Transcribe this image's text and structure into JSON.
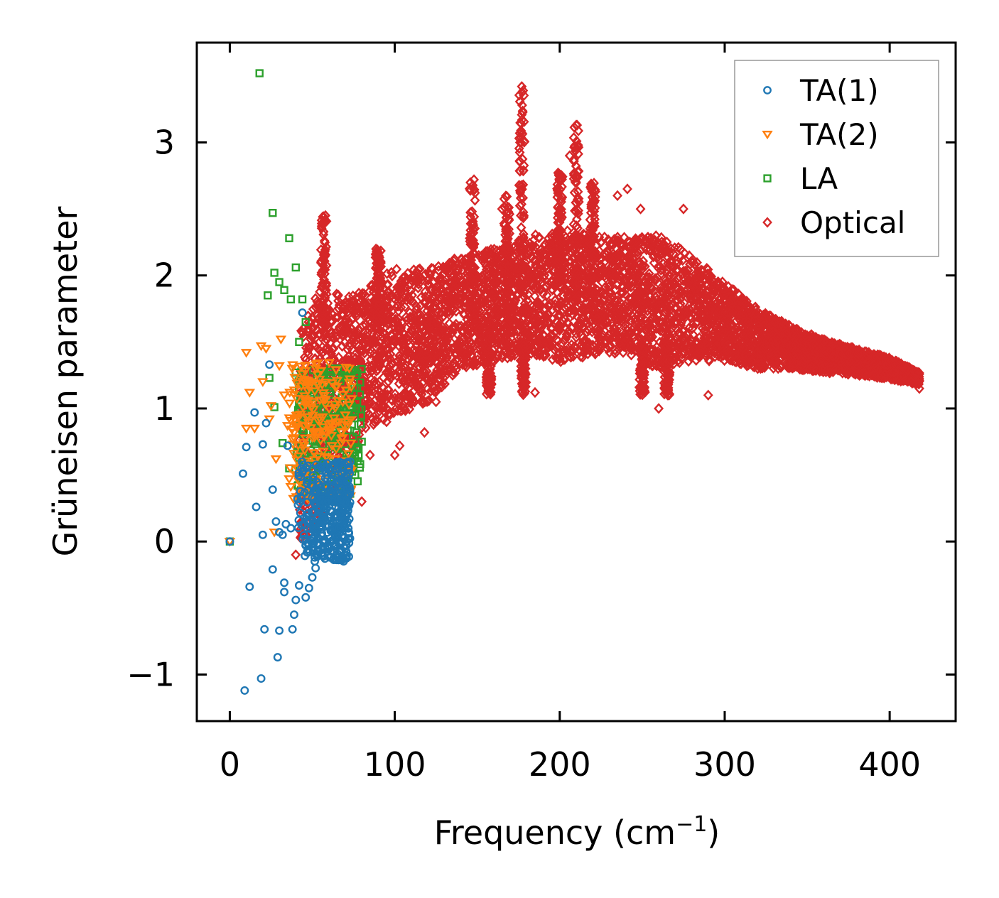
{
  "chart_data": {
    "type": "scatter",
    "title": "",
    "xlabel": "Frequency (cm",
    "xlabel_sup": "−1",
    "xlabel_close": ")",
    "ylabel": "Grüneisen parameter",
    "xlim": [
      -20,
      440
    ],
    "ylim": [
      -1.35,
      3.75
    ],
    "xticks": [
      0,
      100,
      200,
      300,
      400
    ],
    "xtick_labels": [
      "0",
      "100",
      "200",
      "300",
      "400"
    ],
    "yticks": [
      -1,
      0,
      1,
      2,
      3
    ],
    "ytick_labels": [
      "−1",
      "0",
      "1",
      "2",
      "3"
    ],
    "grid": false,
    "legend_position": "top-right",
    "series": [
      {
        "name": "TA(1)",
        "marker": "circle",
        "color": "#1f77b4",
        "points": [
          [
            0,
            0
          ],
          [
            9,
            -1.12
          ],
          [
            10,
            0.71
          ],
          [
            8,
            0.51
          ],
          [
            12,
            -0.34
          ],
          [
            15,
            0.97
          ],
          [
            16,
            0.26
          ],
          [
            19,
            -1.03
          ],
          [
            20,
            0.05
          ],
          [
            20,
            0.73
          ],
          [
            21,
            -0.66
          ],
          [
            22,
            0.89
          ],
          [
            24,
            1.33
          ],
          [
            26,
            0.39
          ],
          [
            26,
            -0.21
          ],
          [
            28,
            0.15
          ],
          [
            29,
            -0.87
          ],
          [
            30,
            0.07
          ],
          [
            30,
            -0.67
          ],
          [
            32,
            0.05
          ],
          [
            33,
            -0.31
          ],
          [
            33,
            -0.38
          ],
          [
            34,
            0.13
          ],
          [
            35,
            0.72
          ],
          [
            37,
            0.1
          ],
          [
            38,
            -0.66
          ],
          [
            39,
            -0.55
          ],
          [
            40,
            -0.44
          ],
          [
            41,
            0.32
          ],
          [
            42,
            -0.33
          ],
          [
            44,
            1.72
          ],
          [
            44,
            0.52
          ],
          [
            46,
            -0.42
          ],
          [
            47,
            0.1
          ],
          [
            48,
            -0.35
          ],
          [
            50,
            -0.27
          ],
          [
            52,
            -0.2
          ],
          [
            54,
            0.02
          ],
          [
            55,
            0.12
          ],
          [
            57,
            0.2
          ],
          [
            60,
            -0.05
          ],
          [
            62,
            0.3
          ],
          [
            64,
            0.4
          ],
          [
            66,
            0.1
          ],
          [
            68,
            0.2
          ],
          [
            69,
            -0.12
          ],
          [
            70,
            0.35
          ],
          [
            71,
            0.45
          ],
          [
            72,
            0.55
          ],
          [
            73,
            0.6
          ]
        ],
        "cluster": {
          "x0": 40,
          "x1": 73,
          "y0": -0.15,
          "y1": 0.6,
          "n": 360,
          "skew": 1.6
        }
      },
      {
        "name": "TA(2)",
        "marker": "triangle-down",
        "color": "#ff7f0e",
        "points": [
          [
            0,
            0
          ],
          [
            10,
            1.42
          ],
          [
            10,
            0.85
          ],
          [
            12,
            1.12
          ],
          [
            15,
            0.85
          ],
          [
            19,
            1.47
          ],
          [
            20,
            1.2
          ],
          [
            22,
            1.45
          ],
          [
            24,
            0.92
          ],
          [
            25,
            1.02
          ],
          [
            27,
            0.07
          ],
          [
            28,
            0.62
          ],
          [
            30,
            1.32
          ],
          [
            31,
            1.52
          ],
          [
            33,
            1.1
          ],
          [
            35,
            0.87
          ],
          [
            36,
            0.47
          ],
          [
            38,
            0.77
          ],
          [
            40,
            0.5
          ],
          [
            42,
            0.45
          ],
          [
            44,
            1.26
          ],
          [
            46,
            1.05
          ],
          [
            48,
            1.16
          ],
          [
            50,
            0.78
          ],
          [
            53,
            1.34
          ],
          [
            56,
            1.18
          ],
          [
            58,
            1.03
          ],
          [
            60,
            0.88
          ],
          [
            62,
            0.72
          ],
          [
            64,
            0.62
          ],
          [
            66,
            0.52
          ],
          [
            68,
            0.82
          ],
          [
            70,
            0.95
          ],
          [
            72,
            0.66
          ]
        ],
        "cluster": {
          "x0": 36,
          "x1": 74,
          "y0": 0.3,
          "y1": 1.35,
          "n": 200,
          "skew": 1.0
        }
      },
      {
        "name": "LA",
        "marker": "square",
        "color": "#2ca02c",
        "points": [
          [
            0,
            0
          ],
          [
            18,
            3.52
          ],
          [
            26,
            2.47
          ],
          [
            27,
            2.02
          ],
          [
            30,
            1.95
          ],
          [
            33,
            1.89
          ],
          [
            36,
            2.28
          ],
          [
            37,
            1.82
          ],
          [
            40,
            2.06
          ],
          [
            23,
            1.85
          ],
          [
            24,
            1.23
          ],
          [
            27,
            1.01
          ],
          [
            32,
            0.74
          ],
          [
            36,
            0.55
          ],
          [
            40,
            1.27
          ],
          [
            42,
            1.5
          ],
          [
            44,
            1.82
          ],
          [
            46,
            1.65
          ],
          [
            48,
            0.38
          ],
          [
            50,
            1.15
          ],
          [
            52,
            0.95
          ],
          [
            55,
            1.26
          ],
          [
            58,
            1.05
          ],
          [
            60,
            0.89
          ],
          [
            62,
            0.72
          ],
          [
            65,
            1.3
          ],
          [
            68,
            0.84
          ],
          [
            70,
            0.6
          ],
          [
            72,
            0.65
          ],
          [
            74,
            0.88
          ],
          [
            76,
            0.5
          ],
          [
            78,
            0.7
          ],
          [
            80,
            0.75
          ]
        ],
        "cluster": {
          "x0": 40,
          "x1": 80,
          "y0": 0.35,
          "y1": 1.3,
          "n": 230,
          "skew": 1.0
        }
      },
      {
        "name": "Optical",
        "marker": "diamond",
        "color": "#d62728",
        "points": [
          [
            40,
            -0.1
          ],
          [
            44,
            0.05
          ],
          [
            48,
            0.2
          ],
          [
            52,
            0.4
          ],
          [
            55,
            0.6
          ],
          [
            58,
            2.45
          ],
          [
            80,
            0.3
          ],
          [
            85,
            0.65
          ],
          [
            95,
            0.9
          ],
          [
            100,
            0.65
          ],
          [
            103,
            0.72
          ],
          [
            118,
            0.82
          ],
          [
            125,
            1.05
          ],
          [
            148,
            2.72
          ],
          [
            158,
            1.12
          ],
          [
            165,
            2.5
          ],
          [
            177,
            3.42
          ],
          [
            185,
            1.12
          ],
          [
            210,
            3.13
          ],
          [
            206,
            2.9
          ],
          [
            235,
            2.6
          ],
          [
            241,
            2.65
          ],
          [
            249,
            2.5
          ],
          [
            260,
            1.0
          ],
          [
            275,
            2.5
          ],
          [
            290,
            1.1
          ],
          [
            300,
            1.9
          ],
          [
            320,
            1.3
          ],
          [
            360,
            1.5
          ],
          [
            380,
            1.3
          ],
          [
            395,
            1.25
          ],
          [
            410,
            1.3
          ],
          [
            418,
            1.15
          ]
        ],
        "band_curve": [
          {
            "x": 42,
            "low": -0.1,
            "high": 1.6
          },
          {
            "x": 55,
            "low": 0.2,
            "high": 1.9
          },
          {
            "x": 70,
            "low": 0.5,
            "high": 1.85
          },
          {
            "x": 80,
            "low": 0.8,
            "high": 1.9
          },
          {
            "x": 100,
            "low": 0.95,
            "high": 2.05
          },
          {
            "x": 120,
            "low": 1.05,
            "high": 2.05
          },
          {
            "x": 140,
            "low": 1.3,
            "high": 2.15
          },
          {
            "x": 160,
            "low": 1.35,
            "high": 2.2
          },
          {
            "x": 180,
            "low": 1.4,
            "high": 2.3
          },
          {
            "x": 200,
            "low": 1.35,
            "high": 2.35
          },
          {
            "x": 220,
            "low": 1.4,
            "high": 2.3
          },
          {
            "x": 240,
            "low": 1.4,
            "high": 2.3
          },
          {
            "x": 260,
            "low": 1.3,
            "high": 2.3
          },
          {
            "x": 280,
            "low": 1.35,
            "high": 2.15
          },
          {
            "x": 300,
            "low": 1.35,
            "high": 1.95
          },
          {
            "x": 320,
            "low": 1.3,
            "high": 1.75
          },
          {
            "x": 340,
            "low": 1.3,
            "high": 1.62
          },
          {
            "x": 360,
            "low": 1.27,
            "high": 1.52
          },
          {
            "x": 380,
            "low": 1.25,
            "high": 1.45
          },
          {
            "x": 400,
            "low": 1.22,
            "high": 1.38
          },
          {
            "x": 418,
            "low": 1.18,
            "high": 1.27
          }
        ],
        "band_n": 5200,
        "spikes": [
          {
            "x": 57,
            "y0": 1.5,
            "y1": 2.45
          },
          {
            "x": 90,
            "y0": 1.6,
            "y1": 2.2
          },
          {
            "x": 147,
            "y0": 1.6,
            "y1": 2.7
          },
          {
            "x": 157,
            "y0": 1.1,
            "y1": 1.6
          },
          {
            "x": 168,
            "y0": 1.7,
            "y1": 2.6
          },
          {
            "x": 177,
            "y0": 1.9,
            "y1": 3.42
          },
          {
            "x": 178,
            "y0": 1.1,
            "y1": 1.5
          },
          {
            "x": 200,
            "y0": 1.9,
            "y1": 2.8
          },
          {
            "x": 210,
            "y0": 1.8,
            "y1": 3.13
          },
          {
            "x": 220,
            "y0": 1.8,
            "y1": 2.7
          },
          {
            "x": 250,
            "y0": 1.1,
            "y1": 1.5
          },
          {
            "x": 265,
            "y0": 1.1,
            "y1": 1.5
          }
        ]
      }
    ]
  }
}
